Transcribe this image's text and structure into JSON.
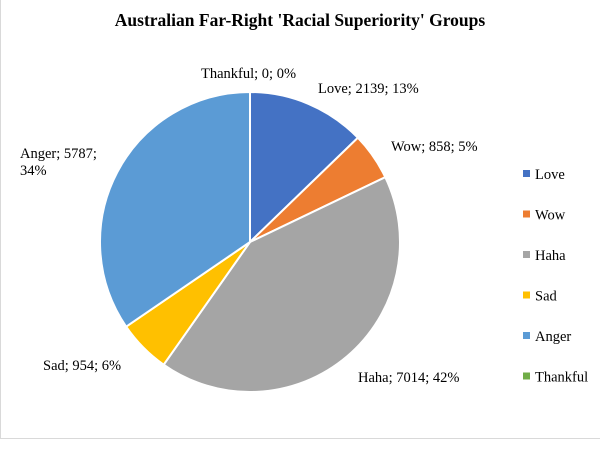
{
  "chart_data": {
    "type": "pie",
    "title": "Australian Far-Right 'Racial Superiority' Groups",
    "slices": [
      {
        "name": "Love",
        "value": 2139,
        "percent": "13%",
        "color": "#4472C4"
      },
      {
        "name": "Wow",
        "value": 858,
        "percent": "5%",
        "color": "#ED7D31"
      },
      {
        "name": "Haha",
        "value": 7014,
        "percent": "42%",
        "color": "#A5A5A5"
      },
      {
        "name": "Sad",
        "value": 954,
        "percent": "6%",
        "color": "#FFC000"
      },
      {
        "name": "Anger",
        "value": 5787,
        "percent": "34%",
        "color": "#5B9BD5"
      },
      {
        "name": "Thankful",
        "value": 0,
        "percent": "0%",
        "color": "#70AD47"
      }
    ],
    "data_labels": [
      [
        "Love; 2139; 13%"
      ],
      [
        "Wow; 858; 5%"
      ],
      [
        "Haha; 7014; 42%"
      ],
      [
        "Sad; 954; 6%"
      ],
      [
        "Anger; 5787;",
        "34%"
      ],
      [
        "Thankful; 0; 0%"
      ]
    ],
    "legend": [
      "Love",
      "Wow",
      "Haha",
      "Sad",
      "Anger",
      "Thankful"
    ],
    "legend_position": "right"
  }
}
